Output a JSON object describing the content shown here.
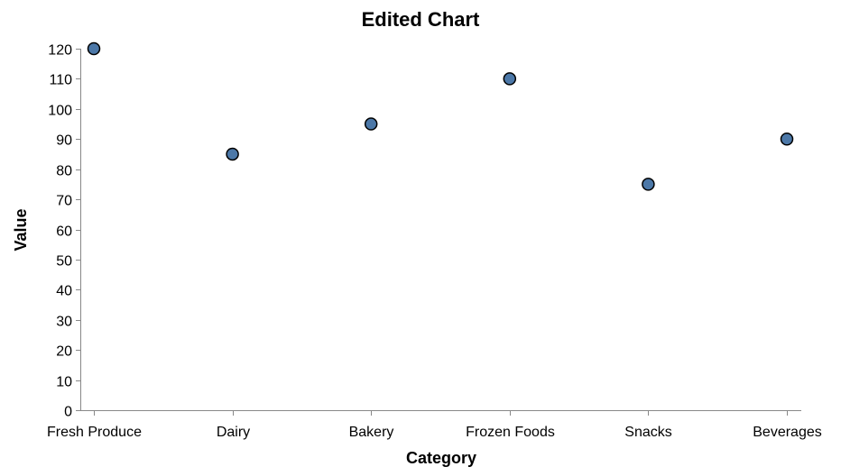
{
  "chart_data": {
    "type": "scatter",
    "title": "Edited Chart",
    "xlabel": "Category",
    "ylabel": "Value",
    "categories": [
      "Fresh Produce",
      "Dairy",
      "Bakery",
      "Frozen Foods",
      "Snacks",
      "Beverages"
    ],
    "values": [
      120,
      85,
      95,
      110,
      75,
      90
    ],
    "yticks": [
      0,
      10,
      20,
      30,
      40,
      50,
      60,
      70,
      80,
      90,
      100,
      110,
      120
    ],
    "ylim": [
      0,
      120
    ],
    "grid": false,
    "legend": "none",
    "colors": {
      "point_fill": "#4C78A8",
      "point_stroke": "#000000",
      "axis": "#888888"
    }
  }
}
